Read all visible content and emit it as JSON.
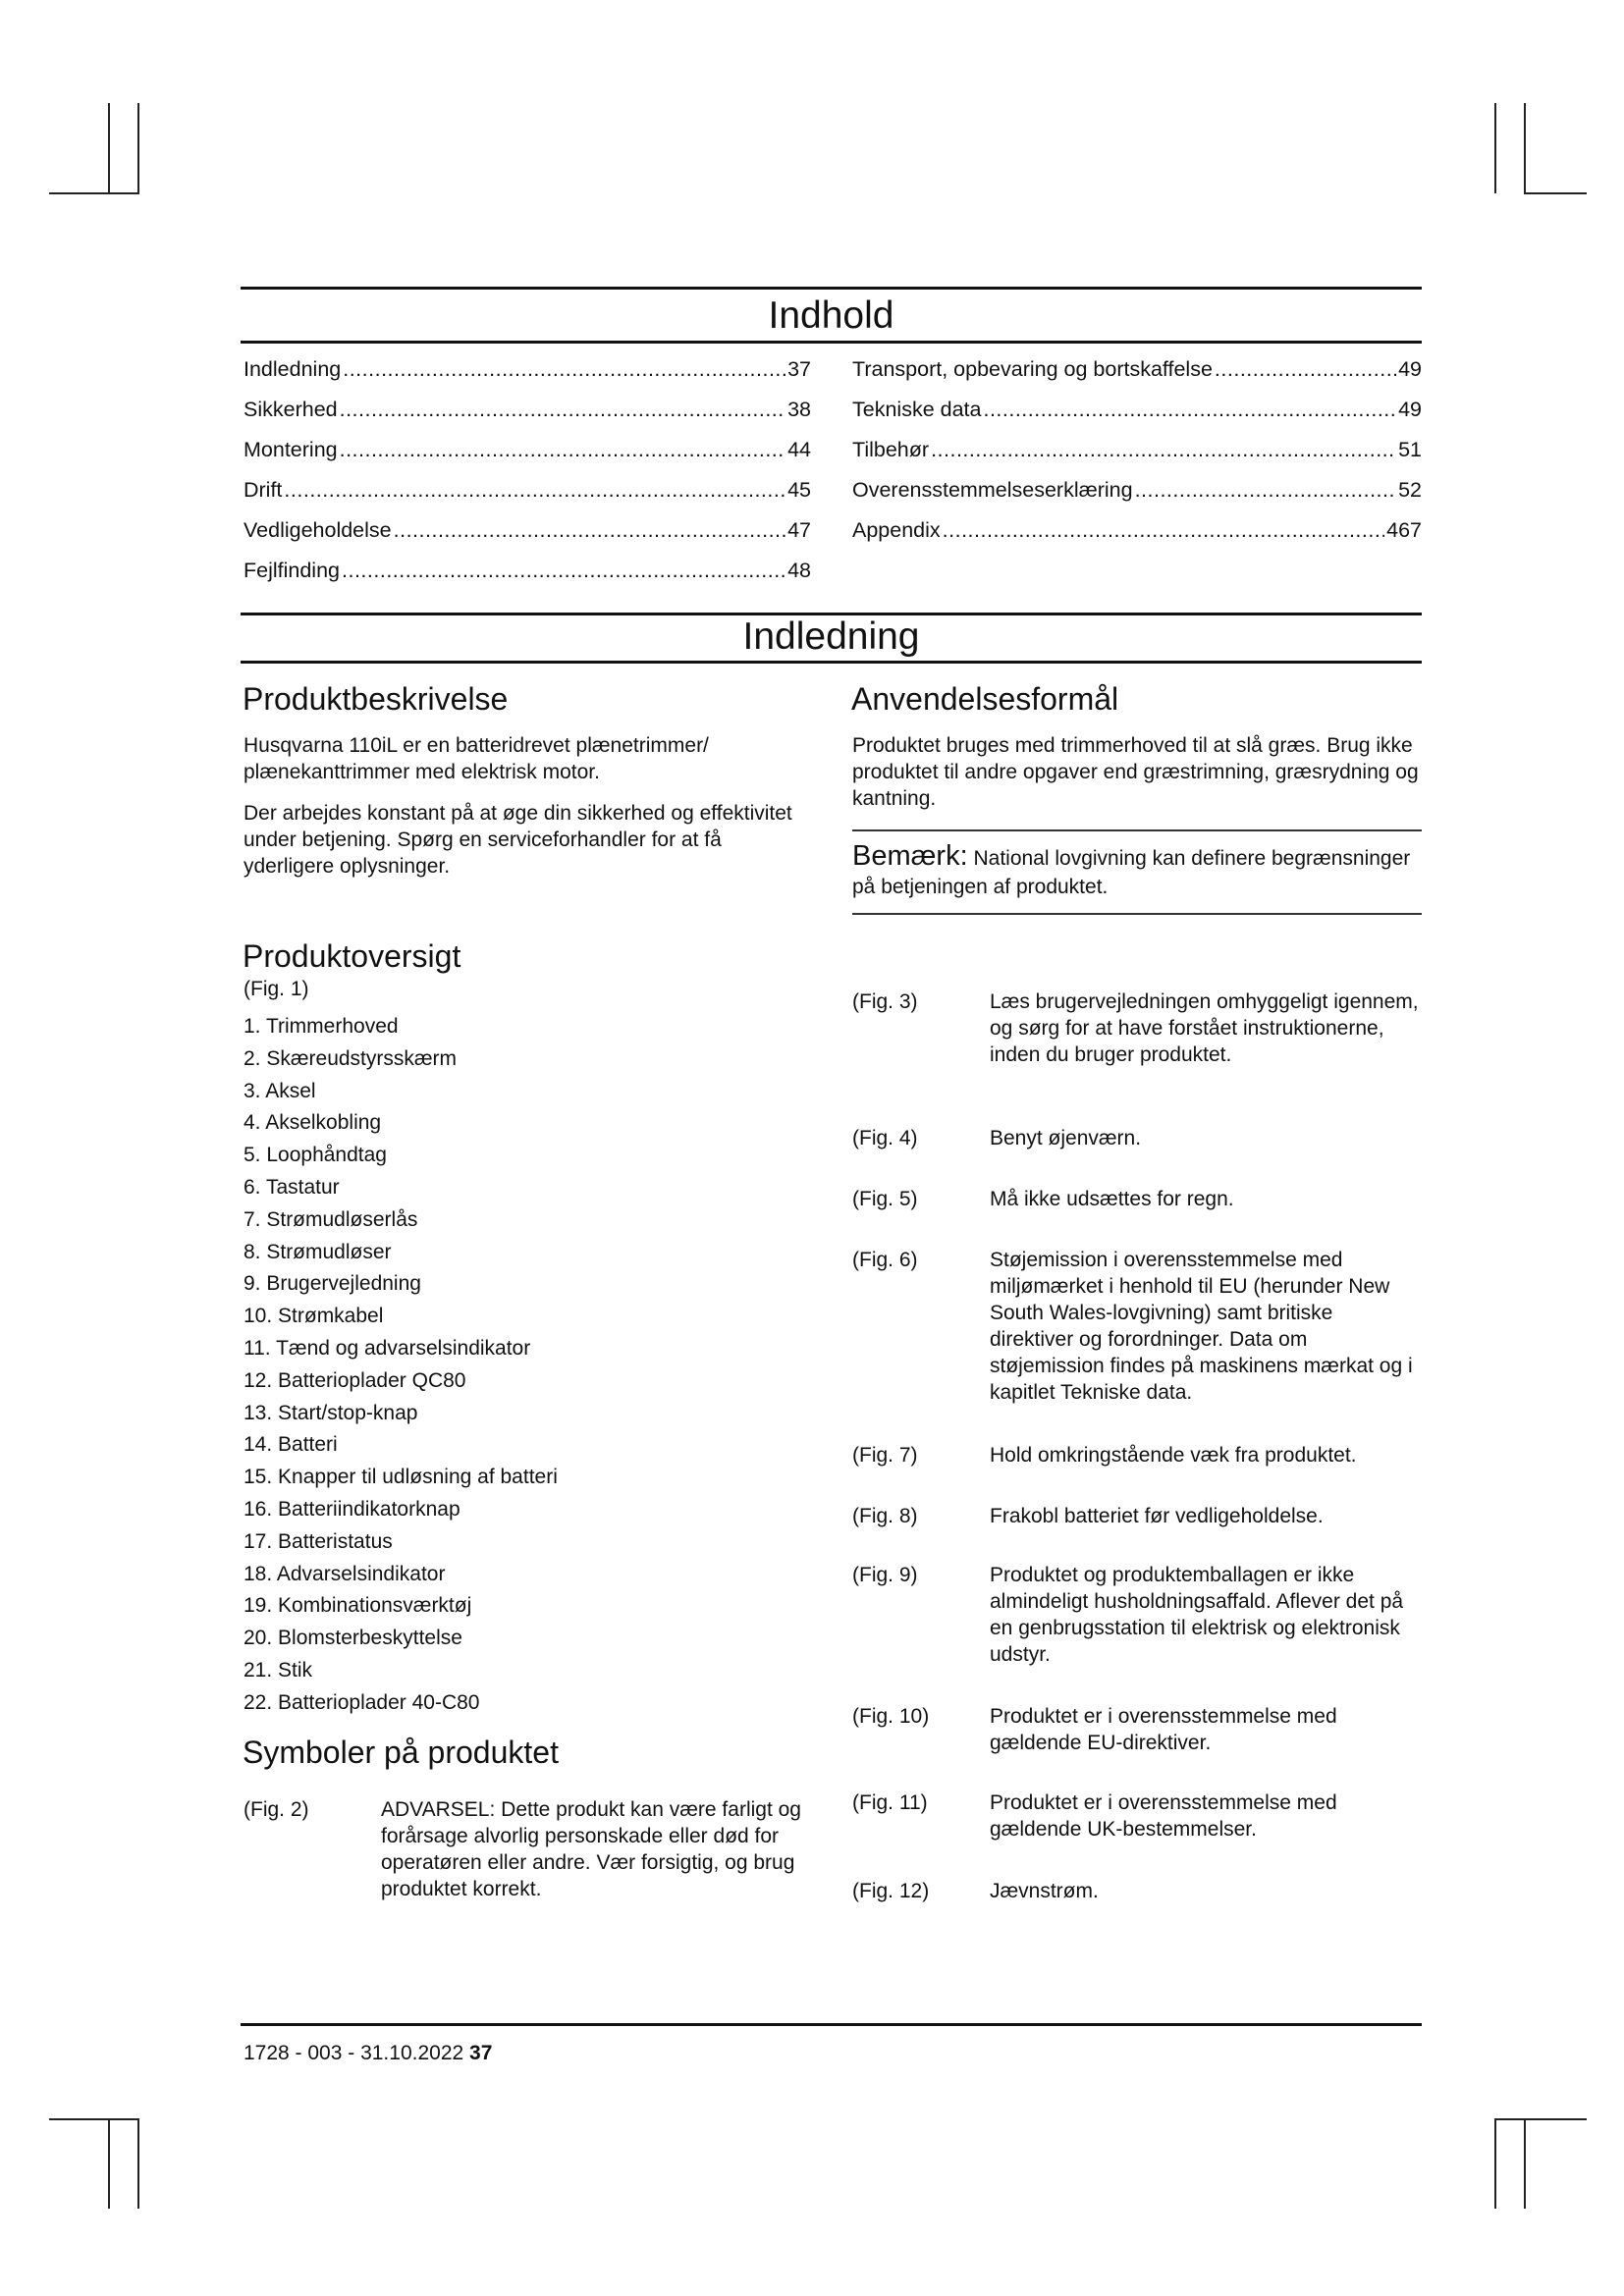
{
  "toc": {
    "title": "Indhold",
    "left": [
      {
        "label": "Indledning",
        "page": "37"
      },
      {
        "label": "Sikkerhed",
        "page": "38"
      },
      {
        "label": "Montering",
        "page": "44"
      },
      {
        "label": "Drift",
        "page": "45"
      },
      {
        "label": "Vedligeholdelse",
        "page": "47"
      },
      {
        "label": "Fejlfinding",
        "page": "48"
      }
    ],
    "right": [
      {
        "label": "Transport, opbevaring og bortskaffelse",
        "page": "49"
      },
      {
        "label": "Tekniske data",
        "page": "49"
      },
      {
        "label": "Tilbehør",
        "page": "51"
      },
      {
        "label": "Overensstemmelseserklæring",
        "page": "52"
      },
      {
        "label": "Appendix",
        "page": "467"
      }
    ]
  },
  "intro": {
    "title": "Indledning",
    "product_description": {
      "heading": "Produktbeskrivelse",
      "p1": "Husqvarna 110iL er en batteridrevet plænetrimmer/ plænekanttrimmer med elektrisk motor.",
      "p2": "Der arbejdes konstant på at øge din sikkerhed og effektivitet under betjening. Spørg en serviceforhandler for at få yderligere oplysninger."
    },
    "intended_use": {
      "heading": "Anvendelsesformål",
      "p1": "Produktet bruges med trimmerhoved til at slå græs. Brug ikke produktet til andre opgaver end græstrimning, græsrydning og kantning.",
      "note_label": "Bemærk:",
      "note_text": " National lovgivning kan definere begrænsninger på betjeningen af produktet."
    },
    "overview": {
      "heading": "Produktoversigt",
      "fig_ref": "(Fig. 1)",
      "items": [
        "1. Trimmerhoved",
        "2. Skæreudstyrsskærm",
        "3. Aksel",
        "4. Akselkobling",
        "5. Loophåndtag",
        "6. Tastatur",
        "7. Strømudløserlås",
        "8. Strømudløser",
        "9. Brugervejledning",
        "10. Strømkabel",
        "11. Tænd og advarselsindikator",
        "12. Batterioplader QC80",
        "13. Start/stop-knap",
        "14. Batteri",
        "15. Knapper til udløsning af batteri",
        "16. Batteriindikatorknap",
        "17. Batteristatus",
        "18. Advarselsindikator",
        "19. Kombinationsværktøj",
        "20. Blomsterbeskyttelse",
        "21. Stik",
        "22. Batterioplader 40-C80"
      ]
    },
    "symbols": {
      "heading": "Symboler på produktet",
      "figs": [
        {
          "ref": "(Fig. 2)",
          "text": "ADVARSEL: Dette produkt kan være farligt og forårsage alvorlig personskade eller død for operatøren eller andre. Vær forsigtig, og brug produktet korrekt."
        },
        {
          "ref": "(Fig. 3)",
          "text": "Læs brugervejledningen omhyggeligt igennem, og sørg for at have forstået instruktionerne, inden du bruger produktet."
        },
        {
          "ref": "(Fig. 4)",
          "text": "Benyt øjenværn."
        },
        {
          "ref": "(Fig. 5)",
          "text": "Må ikke udsættes for regn."
        },
        {
          "ref": "(Fig. 6)",
          "text": "Støjemission i overensstemmelse med miljømærket i henhold til EU (herunder New South Wales-lovgivning) samt britiske direktiver og forordninger. Data om støjemission findes på maskinens mærkat og i kapitlet Tekniske data."
        },
        {
          "ref": "(Fig. 7)",
          "text": "Hold omkringstående væk fra produktet."
        },
        {
          "ref": "(Fig. 8)",
          "text": "Frakobl batteriet før vedligeholdelse."
        },
        {
          "ref": "(Fig. 9)",
          "text": "Produktet og produktemballagen er ikke almindeligt husholdningsaffald. Aflever det på en genbrugsstation til elektrisk og elektronisk udstyr."
        },
        {
          "ref": "(Fig. 10)",
          "text": "Produktet er i overensstemmelse med gældende EU-direktiver."
        },
        {
          "ref": "(Fig. 11)",
          "text": "Produktet er i overensstemmelse med gældende UK-bestemmelser."
        },
        {
          "ref": "(Fig. 12)",
          "text": "Jævnstrøm."
        }
      ]
    }
  },
  "footer": {
    "doc_code": "1728 - 003 - 31.10.2022",
    "page_number": "37"
  }
}
